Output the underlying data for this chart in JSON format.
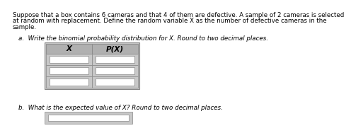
{
  "title_text_lines": [
    "Suppose that a box contains 6 cameras and that 4 of them are defective. A sample of 2 cameras is selected",
    "at random with replacement. Define the random variable X as the number of defective cameras in the",
    "sample."
  ],
  "part_a_text": "a.  Write the binomial probability distribution for X. Round to two decimal places.",
  "part_b_text": "b.  What is the expected value of X? Round to two decimal places.",
  "col1_header": "X",
  "col2_header": "P(X)",
  "table_rows": 3,
  "header_bg": "#b0b0b0",
  "cell_bg": "#e0e0e0",
  "table_outer_bg": "#c8c8c8",
  "border_color": "#888888",
  "text_color": "#000000",
  "bg_color": "#ffffff",
  "title_fontsize": 6.2,
  "label_fontsize": 6.3,
  "header_fontsize": 7.5
}
